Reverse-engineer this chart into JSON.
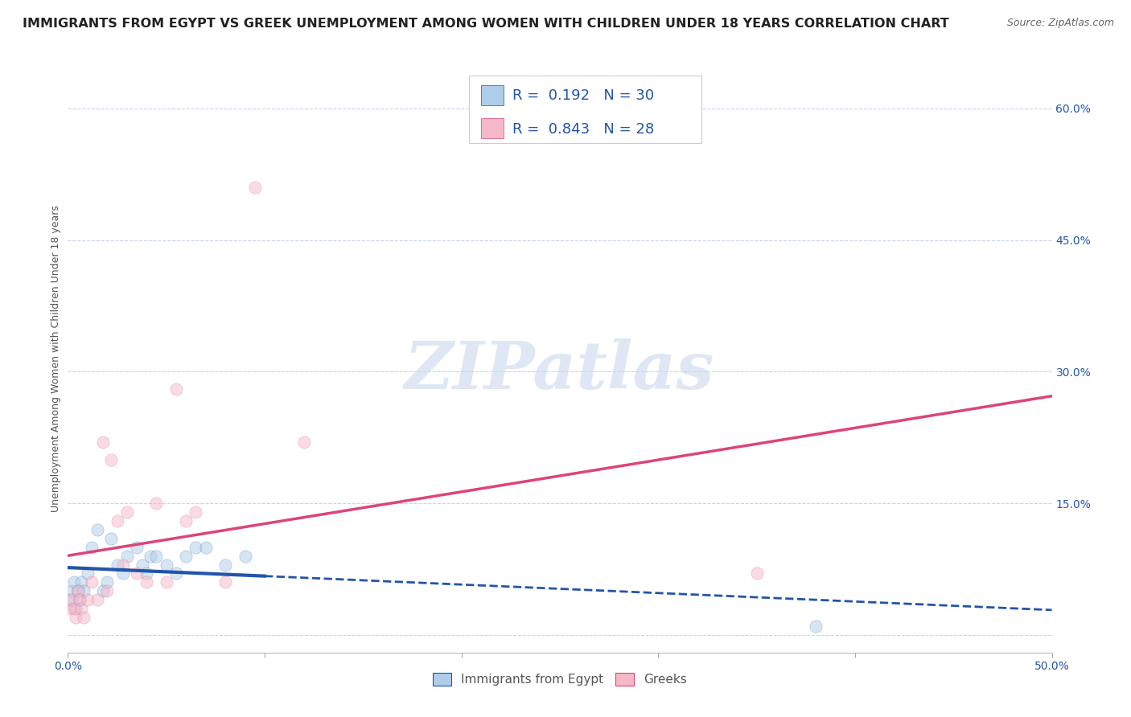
{
  "title": "IMMIGRANTS FROM EGYPT VS GREEK UNEMPLOYMENT AMONG WOMEN WITH CHILDREN UNDER 18 YEARS CORRELATION CHART",
  "source": "Source: ZipAtlas.com",
  "ylabel": "Unemployment Among Women with Children Under 18 years",
  "xlim": [
    0.0,
    0.5
  ],
  "ylim": [
    -0.02,
    0.65
  ],
  "yticks": [
    0.0,
    0.15,
    0.3,
    0.45,
    0.6
  ],
  "ytick_labels": [
    "",
    "15.0%",
    "30.0%",
    "45.0%",
    "60.0%"
  ],
  "xtick_positions": [
    0.0,
    0.1,
    0.2,
    0.3,
    0.4,
    0.5
  ],
  "legend_entries": [
    {
      "label": "Immigrants from Egypt",
      "color": "#aecde8",
      "R": 0.192,
      "N": 30
    },
    {
      "label": "Greeks",
      "color": "#f4b8c8",
      "R": 0.843,
      "N": 28
    }
  ],
  "blue_scatter_x": [
    0.001,
    0.002,
    0.003,
    0.004,
    0.005,
    0.006,
    0.007,
    0.008,
    0.01,
    0.012,
    0.015,
    0.018,
    0.02,
    0.022,
    0.025,
    0.028,
    0.03,
    0.035,
    0.038,
    0.04,
    0.042,
    0.045,
    0.05,
    0.055,
    0.06,
    0.065,
    0.07,
    0.08,
    0.09,
    0.38
  ],
  "blue_scatter_y": [
    0.04,
    0.05,
    0.06,
    0.03,
    0.05,
    0.04,
    0.06,
    0.05,
    0.07,
    0.1,
    0.12,
    0.05,
    0.06,
    0.11,
    0.08,
    0.07,
    0.09,
    0.1,
    0.08,
    0.07,
    0.09,
    0.09,
    0.08,
    0.07,
    0.09,
    0.1,
    0.1,
    0.08,
    0.09,
    0.01
  ],
  "pink_scatter_x": [
    0.001,
    0.002,
    0.003,
    0.004,
    0.005,
    0.006,
    0.007,
    0.008,
    0.01,
    0.012,
    0.015,
    0.018,
    0.02,
    0.022,
    0.025,
    0.028,
    0.03,
    0.035,
    0.04,
    0.045,
    0.05,
    0.055,
    0.06,
    0.065,
    0.08,
    0.095,
    0.12,
    0.35
  ],
  "pink_scatter_y": [
    0.03,
    0.04,
    0.03,
    0.02,
    0.05,
    0.04,
    0.03,
    0.02,
    0.04,
    0.06,
    0.04,
    0.22,
    0.05,
    0.2,
    0.13,
    0.08,
    0.14,
    0.07,
    0.06,
    0.15,
    0.06,
    0.28,
    0.13,
    0.14,
    0.06,
    0.51,
    0.22,
    0.07
  ],
  "blue_line_color": "#2255aa",
  "pink_line_color": "#dd4477",
  "dot_size": 120,
  "dot_alpha": 0.5,
  "watermark_text": "ZIPatlas",
  "watermark_fontsize": 60,
  "background_color": "#ffffff",
  "grid_color": "#c8d4e8",
  "title_fontsize": 11.5,
  "source_fontsize": 9,
  "ylabel_fontsize": 9,
  "ytick_fontsize": 10,
  "xtick_fontsize": 10,
  "legend_fontsize": 13
}
